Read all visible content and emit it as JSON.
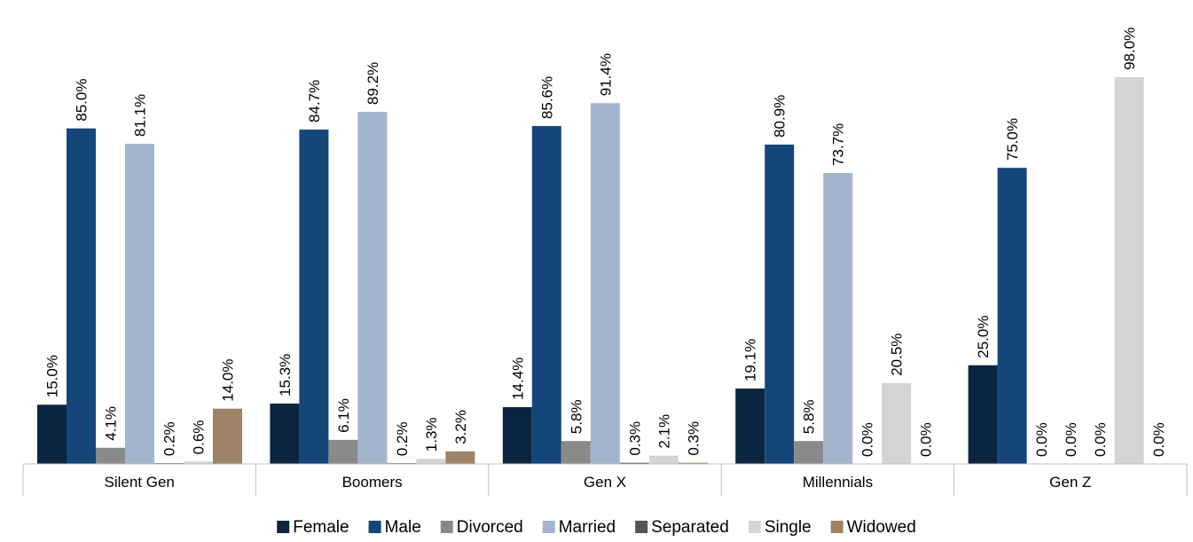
{
  "chart_data": {
    "type": "bar",
    "title": "",
    "xlabel": "",
    "ylabel": "",
    "ylim": [
      0,
      100
    ],
    "grid": false,
    "legend_position": "bottom",
    "value_suffix": "%",
    "categories": [
      "Silent Gen",
      "Boomers",
      "Gen X",
      "Millennials",
      "Gen Z"
    ],
    "series": [
      {
        "name": "Female",
        "color": "#0b2541",
        "values": [
          15.0,
          15.3,
          14.4,
          19.1,
          25.0
        ]
      },
      {
        "name": "Male",
        "color": "#15467a",
        "values": [
          85.0,
          84.7,
          85.6,
          80.9,
          75.0
        ]
      },
      {
        "name": "Divorced",
        "color": "#8a8a8a",
        "values": [
          4.1,
          6.1,
          5.8,
          5.8,
          0.0
        ]
      },
      {
        "name": "Married",
        "color": "#a2b5cd",
        "values": [
          81.1,
          89.2,
          91.4,
          73.7,
          0.0
        ]
      },
      {
        "name": "Separated",
        "color": "#555555",
        "values": [
          0.2,
          0.2,
          0.3,
          0.0,
          0.0
        ]
      },
      {
        "name": "Single",
        "color": "#d4d4d4",
        "values": [
          0.6,
          1.3,
          2.1,
          20.5,
          98.0
        ]
      },
      {
        "name": "Widowed",
        "color": "#9e8466",
        "values": [
          14.0,
          3.2,
          0.3,
          0.0,
          0.0
        ]
      }
    ]
  }
}
